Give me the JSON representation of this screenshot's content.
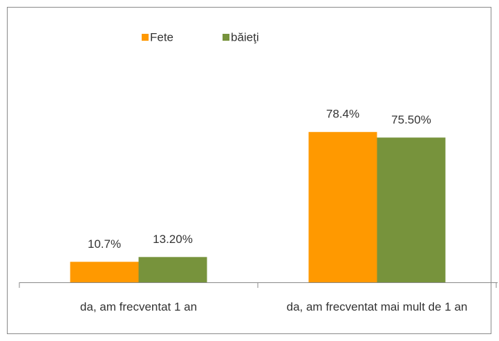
{
  "chart_data": {
    "type": "bar",
    "categories": [
      "da, am frecventat 1 an",
      "da, am frecventat mai mult de 1 an"
    ],
    "series": [
      {
        "name": "Fete",
        "color": "#ff9900",
        "values": [
          10.7,
          78.4
        ],
        "value_labels": [
          "10.7%",
          "78.4%"
        ]
      },
      {
        "name": "băieţi",
        "color": "#77933c",
        "values": [
          13.2,
          75.5
        ],
        "value_labels": [
          "13.20%",
          "75.50%"
        ]
      }
    ],
    "ylim": [
      0,
      90
    ],
    "legend": "top"
  }
}
